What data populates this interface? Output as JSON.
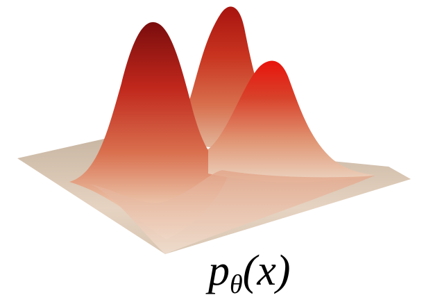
{
  "label": {
    "base": "p",
    "subscript": "θ",
    "argument": "(x)"
  }
}
